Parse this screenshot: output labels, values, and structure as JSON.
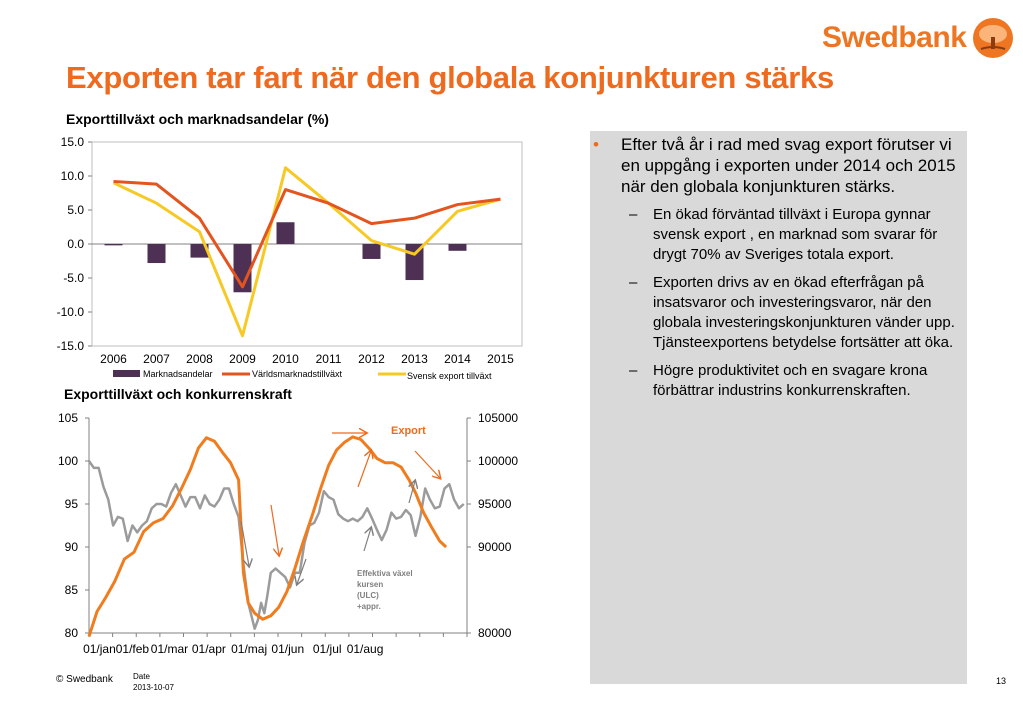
{
  "brand": {
    "name": "Swedbank",
    "color": "#ee7623"
  },
  "slide": {
    "title": "Exporten tar fart när den globala konjunkturen stärks",
    "footer_copyright": "© Swedbank",
    "footer_date_label": "Date",
    "footer_date": "2013-10-07",
    "page_number": "13"
  },
  "chart_data": [
    {
      "type": "bar",
      "title": "Exporttillväxt och marknadsandelar (%)",
      "categories": [
        "2006",
        "2007",
        "2008",
        "2009",
        "2010",
        "2011",
        "2012",
        "2013",
        "2014",
        "2015"
      ],
      "series": [
        {
          "name": "Marknadsandelar",
          "type": "bar",
          "color": "#4e3055",
          "values": [
            -0.2,
            -2.8,
            -2.0,
            -7.1,
            3.2,
            0.0,
            -2.2,
            -5.3,
            -1.0,
            0.0
          ]
        },
        {
          "name": "Världsmarknadstillväxt",
          "type": "line",
          "color": "#e3541e",
          "values": [
            9.2,
            8.8,
            3.8,
            -6.3,
            8.0,
            6.0,
            3.0,
            3.8,
            5.8,
            6.6
          ]
        },
        {
          "name": "Svensk export tillväxt",
          "type": "line",
          "color": "#f7c924",
          "values": [
            9.0,
            6.0,
            1.8,
            -13.5,
            11.2,
            6.0,
            0.5,
            -1.5,
            4.8,
            6.6
          ]
        }
      ],
      "yticks": [
        "15.0",
        "10.0",
        "5.0",
        "0.0",
        "-5.0",
        "-10.0",
        "-15.0"
      ],
      "ylim": [
        -15,
        15
      ],
      "legend": "bottom"
    },
    {
      "type": "line",
      "title": "Exporttillväxt och konkurrenskraft",
      "xticks": [
        "01/jan",
        "01/feb",
        "01/mar",
        "01/apr",
        "01/maj",
        "01/jun",
        "01/jul",
        "01/aug"
      ],
      "yticks_left": [
        "105",
        "100",
        "95",
        "90",
        "85",
        "80"
      ],
      "yticks_right": [
        "105000",
        "100000",
        "95000",
        "90000",
        "80000"
      ],
      "ylim_left": [
        80,
        105
      ],
      "series": [
        {
          "name": "Export",
          "axis": "right",
          "color": "#f07c1e",
          "points": [
            [
              0.0,
              79.6
            ],
            [
              0.5,
              82.5
            ],
            [
              1.0,
              84.0
            ],
            [
              1.6,
              86.0
            ],
            [
              2.2,
              88.6
            ],
            [
              2.8,
              89.4
            ],
            [
              3.4,
              91.8
            ],
            [
              4.0,
              92.8
            ],
            [
              4.6,
              93.3
            ],
            [
              5.2,
              94.8
            ],
            [
              5.8,
              97.0
            ],
            [
              6.3,
              99.0
            ],
            [
              6.8,
              101.5
            ],
            [
              7.3,
              102.7
            ],
            [
              7.8,
              102.3
            ],
            [
              8.3,
              101.0
            ],
            [
              8.8,
              99.8
            ],
            [
              9.3,
              97.8
            ],
            [
              9.6,
              87.0
            ],
            [
              9.9,
              83.5
            ],
            [
              10.3,
              82.3
            ],
            [
              10.8,
              81.6
            ],
            [
              11.3,
              82.0
            ],
            [
              11.8,
              83.0
            ],
            [
              12.3,
              84.8
            ],
            [
              12.8,
              87.5
            ],
            [
              13.3,
              90.5
            ],
            [
              13.9,
              93.8
            ],
            [
              14.4,
              96.8
            ],
            [
              14.9,
              99.5
            ],
            [
              15.4,
              101.3
            ],
            [
              15.9,
              102.2
            ],
            [
              16.4,
              102.8
            ],
            [
              16.9,
              102.5
            ],
            [
              17.4,
              101.5
            ],
            [
              17.9,
              100.3
            ],
            [
              18.4,
              99.8
            ],
            [
              18.9,
              99.8
            ],
            [
              19.4,
              99.3
            ],
            [
              19.9,
              97.8
            ],
            [
              20.3,
              96.3
            ],
            [
              20.8,
              94.0
            ],
            [
              21.3,
              92.3
            ],
            [
              21.8,
              90.7
            ],
            [
              22.2,
              90.0
            ]
          ]
        },
        {
          "name": "Effektiva växel kursen (ULC) +appr.",
          "axis": "left",
          "color": "#9b9b9b",
          "points": [
            [
              0.0,
              100.0
            ],
            [
              0.3,
              99.2
            ],
            [
              0.6,
              99.2
            ],
            [
              0.9,
              97.0
            ],
            [
              1.2,
              95.5
            ],
            [
              1.5,
              92.5
            ],
            [
              1.8,
              93.5
            ],
            [
              2.1,
              93.3
            ],
            [
              2.4,
              90.7
            ],
            [
              2.7,
              92.5
            ],
            [
              3.0,
              91.7
            ],
            [
              3.3,
              92.5
            ],
            [
              3.6,
              93.0
            ],
            [
              3.9,
              94.5
            ],
            [
              4.2,
              95.0
            ],
            [
              4.5,
              95.0
            ],
            [
              4.8,
              94.7
            ],
            [
              5.1,
              96.3
            ],
            [
              5.4,
              97.3
            ],
            [
              5.7,
              96.0
            ],
            [
              6.0,
              94.7
            ],
            [
              6.3,
              95.8
            ],
            [
              6.6,
              95.8
            ],
            [
              6.9,
              94.5
            ],
            [
              7.2,
              96.0
            ],
            [
              7.5,
              95.0
            ],
            [
              7.8,
              94.7
            ],
            [
              8.1,
              95.5
            ],
            [
              8.4,
              96.8
            ],
            [
              8.7,
              96.8
            ],
            [
              9.0,
              95.0
            ],
            [
              9.3,
              93.5
            ],
            [
              9.6,
              88.0
            ],
            [
              9.9,
              83.5
            ],
            [
              10.1,
              82.0
            ],
            [
              10.3,
              80.5
            ],
            [
              10.5,
              81.5
            ],
            [
              10.7,
              83.5
            ],
            [
              10.9,
              82.3
            ],
            [
              11.1,
              84.5
            ],
            [
              11.3,
              87.0
            ],
            [
              11.6,
              87.5
            ],
            [
              11.9,
              87.0
            ],
            [
              12.2,
              86.5
            ],
            [
              12.5,
              85.3
            ],
            [
              12.8,
              87.0
            ],
            [
              13.1,
              87.0
            ],
            [
              13.4,
              90.5
            ],
            [
              13.7,
              92.5
            ],
            [
              14.0,
              92.8
            ],
            [
              14.3,
              94.0
            ],
            [
              14.6,
              96.5
            ],
            [
              14.9,
              95.8
            ],
            [
              15.2,
              95.5
            ],
            [
              15.5,
              93.8
            ],
            [
              15.8,
              93.3
            ],
            [
              16.1,
              93.0
            ],
            [
              16.4,
              93.3
            ],
            [
              16.7,
              93.0
            ],
            [
              17.0,
              93.5
            ],
            [
              17.3,
              94.5
            ],
            [
              17.6,
              93.3
            ],
            [
              17.9,
              92.0
            ],
            [
              18.2,
              90.8
            ],
            [
              18.5,
              92.0
            ],
            [
              18.8,
              94.0
            ],
            [
              19.1,
              93.3
            ],
            [
              19.4,
              93.5
            ],
            [
              19.7,
              94.3
            ],
            [
              20.0,
              93.7
            ],
            [
              20.3,
              91.3
            ],
            [
              20.6,
              93.5
            ],
            [
              20.9,
              96.8
            ],
            [
              21.2,
              95.5
            ],
            [
              21.5,
              94.5
            ],
            [
              21.8,
              94.7
            ],
            [
              22.1,
              96.8
            ],
            [
              22.4,
              97.3
            ],
            [
              22.7,
              95.5
            ],
            [
              23.0,
              94.5
            ],
            [
              23.3,
              95.0
            ]
          ]
        }
      ],
      "annotations": [
        {
          "text": "Export",
          "color": "#ee6a1f"
        },
        {
          "text_lines": [
            "Effektiva växel",
            "kursen",
            "(ULC)",
            "+appr."
          ],
          "color": "#7f7f7f"
        }
      ]
    }
  ]
}
